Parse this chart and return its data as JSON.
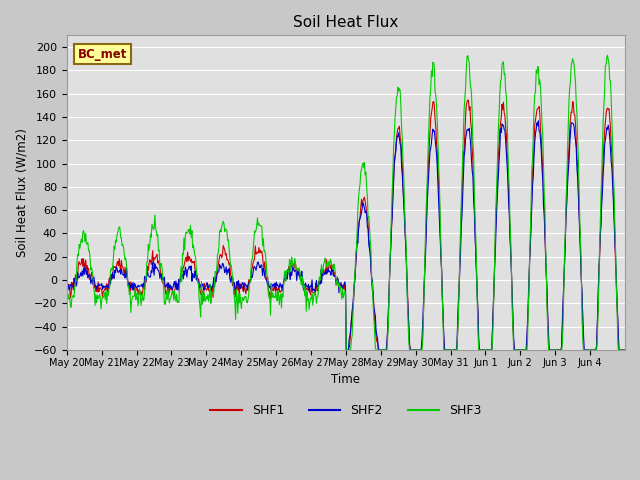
{
  "title": "Soil Heat Flux",
  "ylabel": "Soil Heat Flux (W/m2)",
  "xlabel": "Time",
  "ylim": [
    -60,
    210
  ],
  "yticks": [
    -60,
    -40,
    -20,
    0,
    20,
    40,
    60,
    80,
    100,
    120,
    140,
    160,
    180,
    200
  ],
  "fig_bg": "#c8c8c8",
  "plot_bg": "#e0e0e0",
  "line_colors": {
    "SHF1": "#cc0000",
    "SHF2": "#0000cc",
    "SHF3": "#00cc00"
  },
  "legend_label": "BC_met",
  "legend_box_color": "#ffff99",
  "legend_box_edge": "#8b6914",
  "n_days": 16,
  "n_per_day": 48,
  "tick_labels": [
    "May 20",
    "May 21",
    "May 22",
    "May 23",
    "May 24",
    "May 25",
    "May 26",
    "May 27",
    "May 28",
    "May 29",
    "May 30",
    "May 31",
    "Jun 1",
    "Jun 2",
    "Jun 3",
    "Jun 4"
  ]
}
